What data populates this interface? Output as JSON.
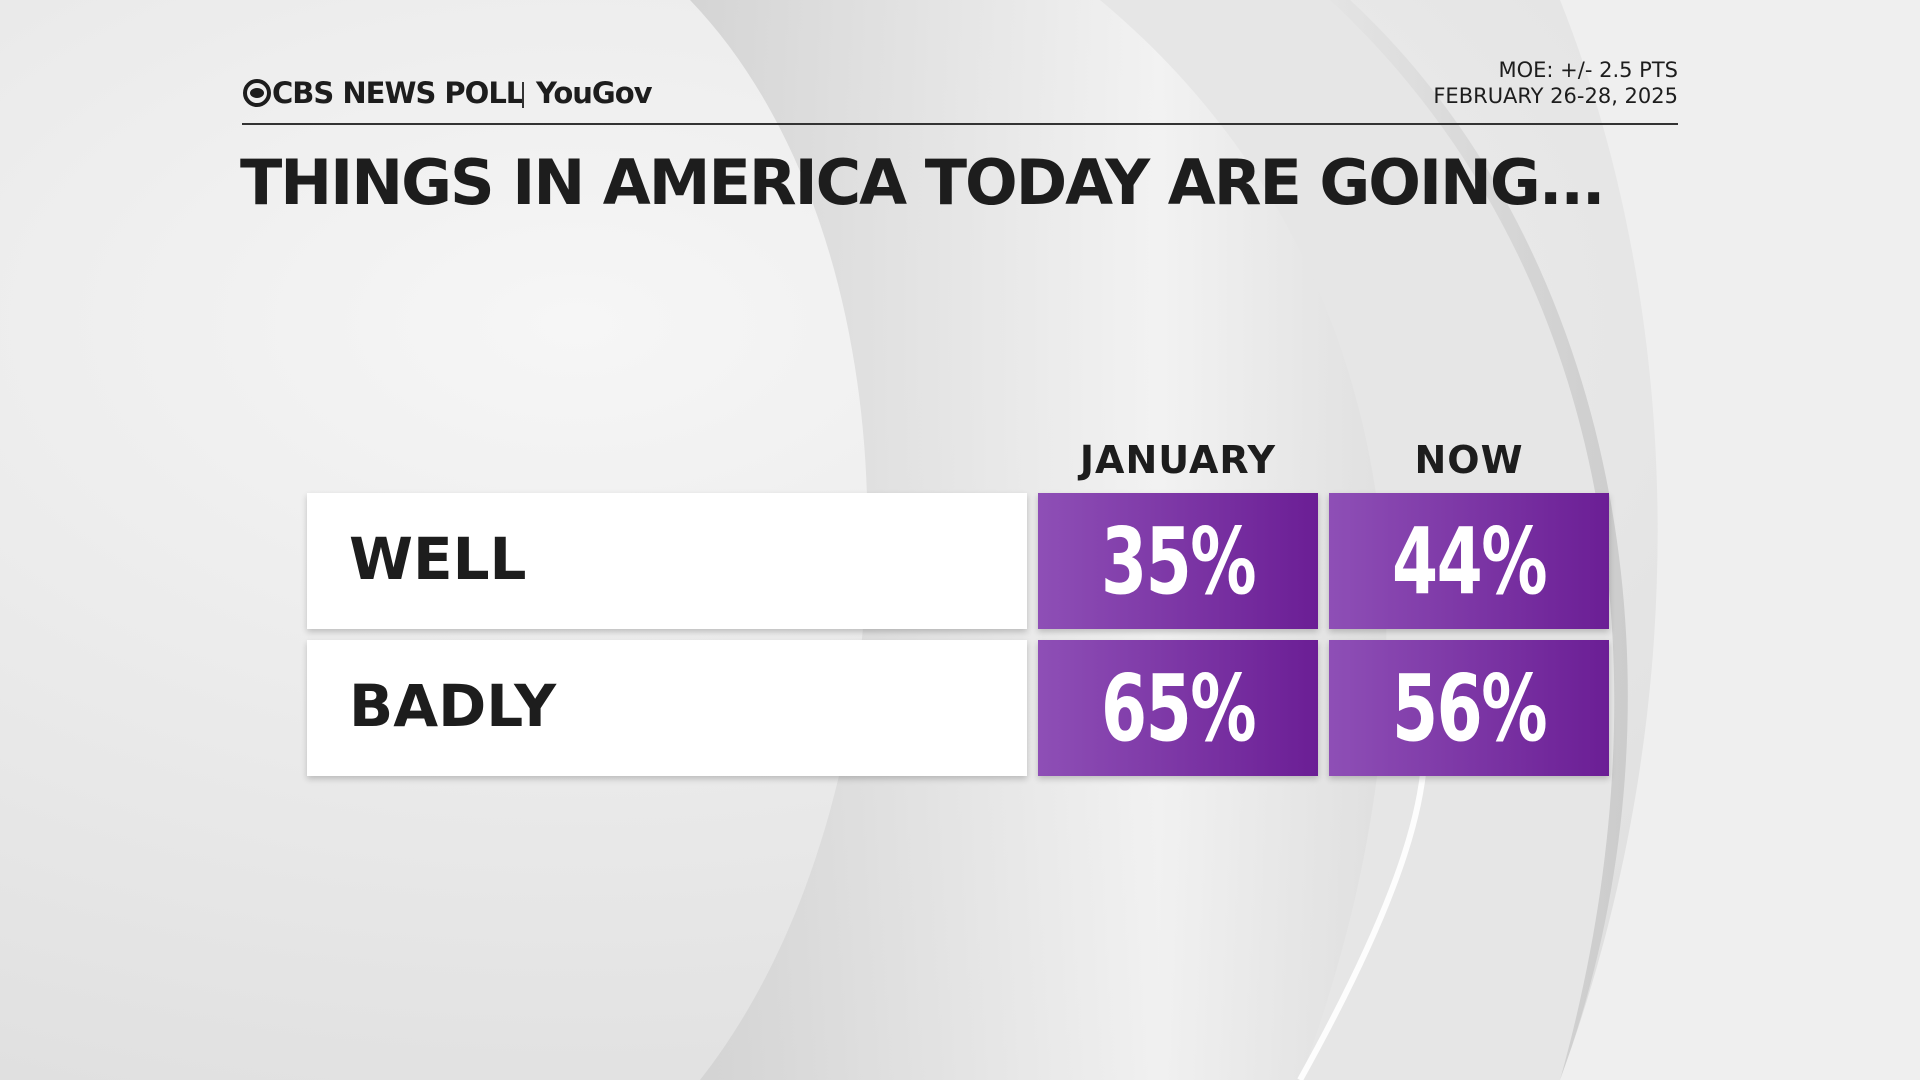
{
  "header": {
    "brand": "CBS NEWS POLL",
    "partner": "YouGov",
    "moe": "MOE: +/- 2.5 PTS",
    "dates": "FEBRUARY 26-28, 2025"
  },
  "title": "THINGS IN AMERICA TODAY ARE GOING...",
  "table": {
    "columns": [
      "JANUARY",
      "NOW"
    ],
    "rows": [
      {
        "label": "WELL",
        "values": [
          "35%",
          "44%"
        ]
      },
      {
        "label": "BADLY",
        "values": [
          "65%",
          "56%"
        ]
      }
    ]
  }
}
